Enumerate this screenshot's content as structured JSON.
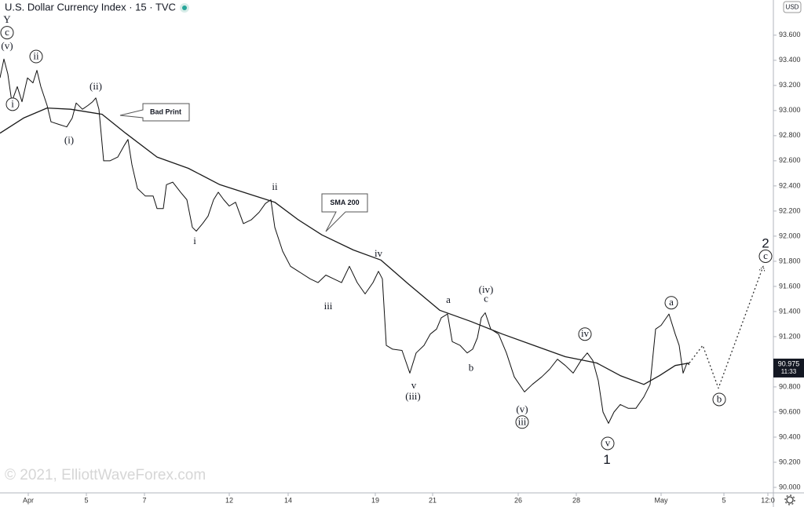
{
  "chart_data": {
    "type": "line",
    "title": "U.S. Dollar Currency Index · 15 · TVC",
    "currency": "USD",
    "watermark": "© 2021, ElliottWaveForex.com",
    "last_price": 90.975,
    "bar_countdown": "11:33",
    "xlim": [
      0,
      985
    ],
    "ylim": [
      89.95,
      93.88
    ],
    "xticks": [
      {
        "value": 36,
        "label": "Apr"
      },
      5,
      7,
      12,
      14,
      19,
      21,
      26,
      28,
      {
        "value": 842,
        "label": "May"
      },
      5,
      {
        "value": 978,
        "label": "12:0"
      }
    ],
    "yticks": [
      {
        "value": 90.0,
        "label": "90.000"
      },
      {
        "value": 90.2,
        "label": "90.200"
      },
      {
        "value": 90.4,
        "label": "90.400"
      },
      {
        "value": 90.6,
        "label": "90.600"
      },
      {
        "value": 90.8,
        "label": "90.800"
      },
      {
        "value": 91.0,
        "label": "91.000"
      },
      {
        "value": 91.2,
        "label": "91.200"
      },
      {
        "value": 91.4,
        "label": "91.400"
      },
      {
        "value": 91.6,
        "label": "91.600"
      },
      {
        "value": 91.8,
        "label": "91.800"
      },
      {
        "value": 92.0,
        "label": "92.000"
      },
      {
        "value": 92.2,
        "label": "92.200"
      },
      {
        "value": 92.4,
        "label": "92.400"
      },
      {
        "value": 92.6,
        "label": "92.600"
      },
      {
        "value": 92.8,
        "label": "92.800"
      },
      {
        "value": 93.0,
        "label": "93.000"
      },
      {
        "value": 93.2,
        "label": "93.200"
      },
      {
        "value": 93.4,
        "label": "93.400"
      },
      {
        "value": 93.6,
        "label": "93.600"
      }
    ],
    "series": [
      {
        "name": "Price",
        "color": "#111111",
        "x": [
          0,
          5,
          10,
          15,
          22,
          28,
          35,
          42,
          47,
          52,
          60,
          65,
          75,
          85,
          92,
          97,
          105,
          112,
          118,
          122,
          126,
          132,
          140,
          150,
          158,
          163,
          168,
          175,
          185,
          195,
          200,
          208,
          212,
          220,
          230,
          238,
          245,
          250,
          258,
          265,
          272,
          278,
          285,
          292,
          300,
          310,
          320,
          330,
          338,
          345,
          350,
          360,
          370,
          380,
          395,
          405,
          415,
          425,
          435,
          445,
          455,
          465,
          475,
          482,
          487,
          492,
          500,
          512,
          522,
          530,
          540,
          548,
          556,
          562,
          570,
          576,
          586,
          595,
          602,
          608,
          613,
          618,
          625,
          635,
          645,
          655,
          668,
          678,
          690,
          700,
          710,
          720,
          730,
          740,
          748,
          755,
          762,
          768,
          775,
          782,
          790,
          800,
          810,
          820,
          828,
          835,
          842,
          852,
          860,
          865,
          870,
          875,
          878
        ],
        "values": [
          93.26,
          93.41,
          93.29,
          93.07,
          93.19,
          93.07,
          93.26,
          93.22,
          93.32,
          93.19,
          93.04,
          92.91,
          92.89,
          92.87,
          92.94,
          93.06,
          93.01,
          93.04,
          93.07,
          93.1,
          93.01,
          92.6,
          92.6,
          92.63,
          92.72,
          92.77,
          92.57,
          92.38,
          92.32,
          92.32,
          92.22,
          92.22,
          92.41,
          92.43,
          92.35,
          92.29,
          92.07,
          92.04,
          92.1,
          92.16,
          92.29,
          92.35,
          92.29,
          92.24,
          92.27,
          92.1,
          92.13,
          92.19,
          92.26,
          92.29,
          92.07,
          91.88,
          91.76,
          91.72,
          91.66,
          91.63,
          91.69,
          91.66,
          91.63,
          91.76,
          91.63,
          91.54,
          91.63,
          91.72,
          91.66,
          91.13,
          91.1,
          91.09,
          90.91,
          91.07,
          91.13,
          91.22,
          91.26,
          91.35,
          91.38,
          91.16,
          91.13,
          91.07,
          91.1,
          91.19,
          91.35,
          91.39,
          91.26,
          91.22,
          91.07,
          90.88,
          90.76,
          90.82,
          90.88,
          90.94,
          91.02,
          90.97,
          90.91,
          91.01,
          91.07,
          91.01,
          90.85,
          90.6,
          90.51,
          90.6,
          90.66,
          90.63,
          90.63,
          90.72,
          90.82,
          91.26,
          91.29,
          91.38,
          91.22,
          91.13,
          90.91,
          90.99,
          90.975
        ]
      },
      {
        "name": "SMA 200",
        "color": "#1a1a1a",
        "x": [
          0,
          30,
          60,
          90,
          130,
          160,
          200,
          240,
          280,
          320,
          350,
          380,
          410,
          450,
          485,
          520,
          560,
          600,
          640,
          680,
          720,
          760,
          790,
          820,
          840,
          860,
          878
        ],
        "values": [
          92.82,
          92.94,
          93.02,
          93.01,
          92.97,
          92.82,
          92.63,
          92.54,
          92.41,
          92.33,
          92.27,
          92.13,
          92.01,
          91.89,
          91.81,
          91.62,
          91.41,
          91.32,
          91.22,
          91.13,
          91.04,
          90.99,
          90.89,
          90.82,
          90.89,
          90.97,
          90.99
        ]
      },
      {
        "name": "Projection",
        "color": "#333333",
        "dashed": true,
        "x": [
          878,
          895,
          915,
          972
        ],
        "values": [
          90.99,
          91.13,
          90.79,
          91.76
        ]
      }
    ],
    "callouts": [
      "Bad Print",
      "SMA 200"
    ],
    "annotations": [
      {
        "text": "Y",
        "x": 9,
        "y": 93.72
      },
      {
        "text": "c",
        "x": 9,
        "y": 93.62,
        "circled": true
      },
      {
        "text": "(v)",
        "x": 9,
        "y": 93.51
      },
      {
        "text": "i",
        "x": 16,
        "y": 93.05,
        "circled": true
      },
      {
        "text": "ii",
        "x": 46,
        "y": 93.43,
        "circled": true
      },
      {
        "text": "(i)",
        "x": 88,
        "y": 92.76
      },
      {
        "text": "(ii)",
        "x": 122,
        "y": 93.19
      },
      {
        "text": "i",
        "x": 248,
        "y": 91.96
      },
      {
        "text": "ii",
        "x": 350,
        "y": 92.39
      },
      {
        "text": "iii",
        "x": 418,
        "y": 91.44
      },
      {
        "text": "iv",
        "x": 482,
        "y": 91.86
      },
      {
        "text": "v",
        "x": 527,
        "y": 90.81
      },
      {
        "text": "(iii)",
        "x": 526,
        "y": 90.72
      },
      {
        "text": "a",
        "x": 571,
        "y": 91.49
      },
      {
        "text": "b",
        "x": 600,
        "y": 90.95
      },
      {
        "text": "(iv)",
        "x": 619,
        "y": 91.57
      },
      {
        "text": "c",
        "x": 619,
        "y": 91.5
      },
      {
        "text": "(v)",
        "x": 665,
        "y": 90.62
      },
      {
        "text": "iii",
        "x": 665,
        "y": 90.52,
        "circled": true
      },
      {
        "text": "iv",
        "x": 745,
        "y": 91.22,
        "circled": true
      },
      {
        "text": "v",
        "x": 774,
        "y": 90.35,
        "circled": true
      },
      {
        "text": "1",
        "x": 773,
        "y": 90.22,
        "emphasis": true
      },
      {
        "text": "a",
        "x": 855,
        "y": 91.47,
        "circled": true
      },
      {
        "text": "b",
        "x": 916,
        "y": 90.7,
        "circled": true
      },
      {
        "text": "2",
        "x": 975,
        "y": 91.94,
        "emphasis": true
      },
      {
        "text": "c",
        "x": 975,
        "y": 91.84,
        "circled": true
      }
    ]
  }
}
